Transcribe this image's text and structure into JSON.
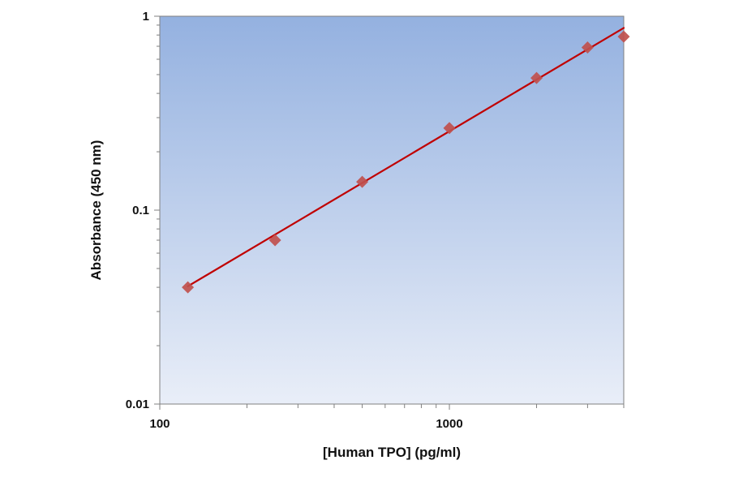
{
  "chart_data": {
    "type": "scatter",
    "title": "",
    "xlabel": "[Human TPO] (pg/ml)",
    "ylabel": "Absorbance (450 nm)",
    "x_scale": "log",
    "y_scale": "log",
    "xlim": [
      100,
      4000
    ],
    "ylim": [
      0.01,
      1
    ],
    "x_ticks": [
      {
        "value": 100,
        "label": "100"
      },
      {
        "value": 1000,
        "label": "1000"
      }
    ],
    "y_ticks": [
      {
        "value": 0.01,
        "label": "0.01"
      },
      {
        "value": 0.1,
        "label": "0.1"
      },
      {
        "value": 1,
        "label": "1"
      }
    ],
    "grid": false,
    "legend": "none",
    "series": [
      {
        "points": [
          {
            "x": 125,
            "y": 0.04
          },
          {
            "x": 250,
            "y": 0.07
          },
          {
            "x": 500,
            "y": 0.14
          },
          {
            "x": 1000,
            "y": 0.265
          },
          {
            "x": 2000,
            "y": 0.48
          },
          {
            "x": 3000,
            "y": 0.69
          },
          {
            "x": 4000,
            "y": 0.785
          }
        ],
        "marker": "diamond",
        "color": "#c0504d"
      }
    ],
    "trendline": {
      "type": "power",
      "x_range": [
        125,
        4000
      ],
      "y_range": [
        0.0405,
        0.87
      ],
      "color": "#c00000"
    },
    "plot_background": {
      "top": "#94b1e0",
      "bottom": "#e9eef8"
    }
  }
}
